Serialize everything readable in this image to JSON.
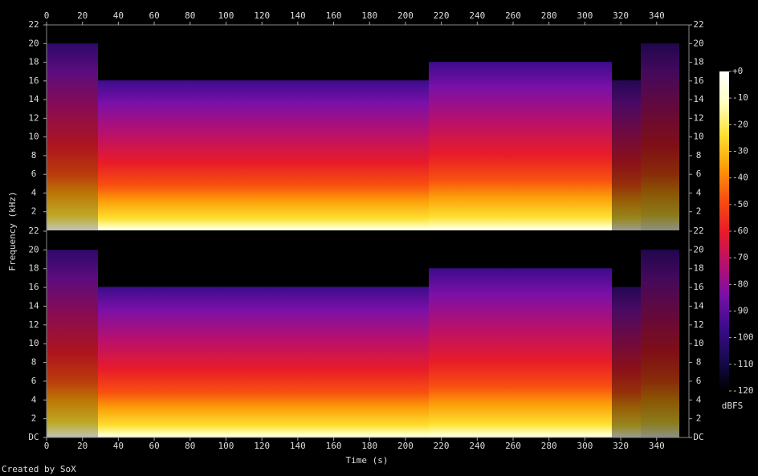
{
  "chart_data": {
    "type": "spectrogram",
    "x_label": "Time (s)",
    "y_label": "Frequency (kHz)",
    "xlim": [
      0,
      358
    ],
    "xticks": [
      0,
      20,
      40,
      60,
      80,
      100,
      120,
      140,
      160,
      180,
      200,
      220,
      240,
      260,
      280,
      300,
      320,
      340
    ],
    "channels": [
      {
        "ylim": [
          0,
          22
        ],
        "yticks": [
          2,
          4,
          6,
          8,
          10,
          12,
          14,
          16,
          18,
          20,
          22
        ]
      },
      {
        "ylim": [
          0,
          22
        ],
        "yticks": [
          {
            "value": 0,
            "label": "DC"
          },
          2,
          4,
          6,
          8,
          10,
          12,
          14,
          16,
          18,
          20,
          22
        ]
      }
    ],
    "zlim": [
      -120,
      0
    ],
    "zticks": [
      {
        "value": 0,
        "label": "+0"
      },
      -10,
      -20,
      -30,
      -40,
      -50,
      -60,
      -70,
      -80,
      -90,
      -100,
      -110,
      -120
    ],
    "colorbar_label": "dBFS",
    "colormap": [
      "#000000",
      "#180a50",
      "#3c0c8c",
      "#7a10a8",
      "#b8106c",
      "#e81c28",
      "#f85010",
      "#fc9c08",
      "#fde030",
      "#ffffc0",
      "#ffffff"
    ],
    "footer": "Created by SoX"
  }
}
